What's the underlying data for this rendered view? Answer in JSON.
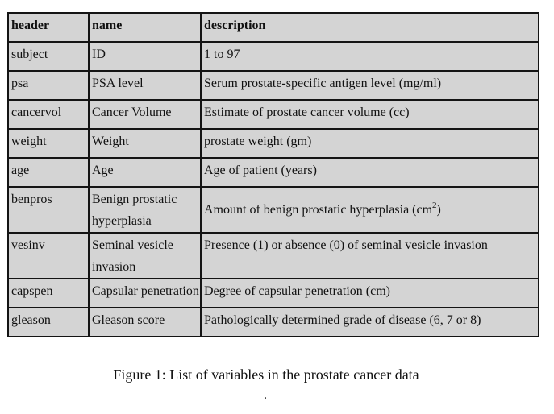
{
  "table": {
    "headers": [
      "header",
      "name",
      "description"
    ],
    "rows": [
      {
        "header": "subject",
        "name": "ID",
        "description": "1 to 97"
      },
      {
        "header": "psa",
        "name": "PSA level",
        "description": "Serum prostate-specific antigen level (mg/ml)"
      },
      {
        "header": "cancervol",
        "name": "Cancer Volume",
        "description": "Estimate of prostate cancer volume (cc)"
      },
      {
        "header": "weight",
        "name": "Weight",
        "description": "prostate weight (gm)"
      },
      {
        "header": "age",
        "name": "Age",
        "description": "Age of patient (years)"
      },
      {
        "header": "benpros",
        "name": "Benign prostatic hyperplasia",
        "description": "Amount of benign prostatic hyperplasia (cm",
        "description_sup": "2",
        "description_end": ")"
      },
      {
        "header": "vesinv",
        "name": "Seminal vesicle invasion",
        "description": "Presence (1) or absence (0) of seminal vesicle invasion"
      },
      {
        "header": "capspen",
        "name": "Capsular penetration",
        "description": "Degree of capsular penetration (cm)"
      },
      {
        "header": "gleason",
        "name": "Gleason score",
        "description": "Pathologically determined grade of disease (6, 7 or 8)"
      }
    ]
  },
  "caption": {
    "text": "Figure 1: List of variables in the prostate cancer data",
    "dot": "."
  }
}
